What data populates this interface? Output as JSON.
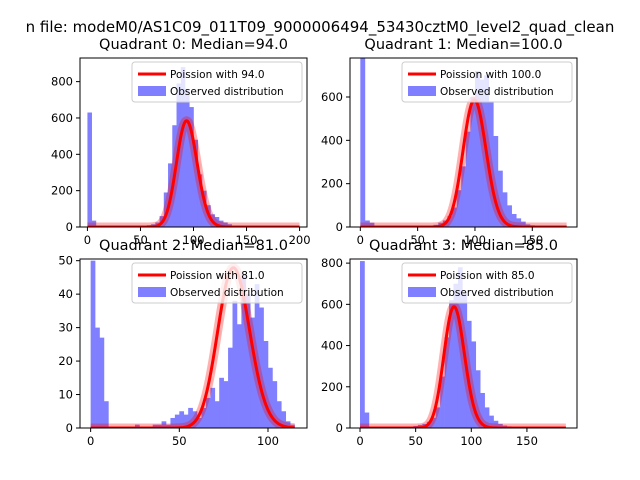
{
  "figure": {
    "suptitle": "n file: modeM0/AS1C09_011T09_9000006494_53430cztM0_level2_quad_clean",
    "colors": {
      "hist": "#7f7fff",
      "poisson": "#ff0000",
      "axes": "#000000",
      "legend_edge": "#cccccc"
    }
  },
  "chart_data": [
    {
      "type": "bar",
      "title": "Quadrant 0: Median=94.0",
      "xlim": [
        -7,
        207
      ],
      "ylim": [
        0,
        930
      ],
      "xticks": [
        0,
        50,
        100,
        150,
        200
      ],
      "xtick_labels": [
        "0",
        "50",
        "100",
        "150",
        "200"
      ],
      "yticks": [
        0,
        200,
        400,
        600,
        800
      ],
      "ytick_labels": [
        "0",
        "200",
        "400",
        "600",
        "800"
      ],
      "bin_edges": [
        0,
        4,
        8,
        12,
        16,
        20,
        24,
        28,
        32,
        36,
        40,
        44,
        48,
        52,
        56,
        60,
        64,
        68,
        72,
        76,
        80,
        84,
        88,
        92,
        96,
        100,
        104,
        108,
        112,
        116,
        120,
        124,
        128,
        132,
        136,
        140,
        144,
        148,
        152,
        156,
        160,
        164,
        168,
        172,
        176,
        180,
        184,
        188,
        192,
        196,
        200
      ],
      "counts": [
        630,
        35,
        0,
        0,
        0,
        0,
        0,
        0,
        0,
        0,
        0,
        0,
        0,
        5,
        10,
        15,
        25,
        60,
        190,
        350,
        560,
        790,
        880,
        760,
        660,
        480,
        290,
        200,
        120,
        70,
        55,
        35,
        25,
        15,
        8,
        5,
        4,
        3,
        2,
        1,
        1,
        0,
        0,
        0,
        0,
        0,
        0,
        0,
        0,
        0
      ],
      "poisson_mean": 94.0,
      "poisson_scale": 14200,
      "poisson_x": [
        0,
        200
      ],
      "legend": [
        "Poission with 94.0",
        "Observed distribution"
      ]
    },
    {
      "type": "bar",
      "title": "Quadrant 1: Median=100.0",
      "xlim": [
        -9,
        189
      ],
      "ylim": [
        0,
        780
      ],
      "xticks": [
        0,
        50,
        100,
        150
      ],
      "xtick_labels": [
        "0",
        "50",
        "100",
        "150"
      ],
      "yticks": [
        0,
        200,
        400,
        600
      ],
      "ytick_labels": [
        "0",
        "200",
        "400",
        "600"
      ],
      "bin_edges": [
        0,
        4,
        8,
        12,
        16,
        20,
        24,
        28,
        32,
        36,
        40,
        44,
        48,
        52,
        56,
        60,
        64,
        68,
        72,
        76,
        80,
        84,
        88,
        92,
        96,
        100,
        104,
        108,
        112,
        116,
        120,
        124,
        128,
        132,
        136,
        140,
        144,
        148,
        152,
        156,
        160,
        164,
        168,
        172,
        176,
        180
      ],
      "counts": [
        790,
        30,
        20,
        0,
        0,
        0,
        0,
        0,
        0,
        0,
        0,
        0,
        0,
        0,
        0,
        0,
        10,
        20,
        30,
        50,
        90,
        170,
        280,
        440,
        600,
        720,
        680,
        700,
        580,
        420,
        260,
        160,
        100,
        60,
        40,
        25,
        12,
        8,
        5,
        3,
        2,
        1,
        1,
        0,
        0
      ],
      "poisson_mean": 100.0,
      "poisson_scale": 14700,
      "poisson_x": [
        0,
        180
      ],
      "legend": [
        "Poission with 100.0",
        "Observed distribution"
      ]
    },
    {
      "type": "bar",
      "title": "Quadrant 2: Median=81.0",
      "xlim": [
        -6,
        122
      ],
      "ylim": [
        0,
        50.5
      ],
      "xticks": [
        0,
        50,
        100
      ],
      "xtick_labels": [
        "0",
        "50",
        "100"
      ],
      "yticks": [
        0,
        10,
        20,
        30,
        40,
        50
      ],
      "ytick_labels": [
        "0",
        "10",
        "20",
        "30",
        "40",
        "50"
      ],
      "bin_edges": [
        0,
        2.5,
        5,
        7.5,
        10,
        12.5,
        15,
        17.5,
        20,
        22.5,
        25,
        27.5,
        30,
        32.5,
        35,
        37.5,
        40,
        42.5,
        45,
        47.5,
        50,
        52.5,
        55,
        57.5,
        60,
        62.5,
        65,
        67.5,
        70,
        72.5,
        75,
        77.5,
        80,
        82.5,
        85,
        87.5,
        90,
        92.5,
        95,
        97.5,
        100,
        102.5,
        105,
        107.5,
        110,
        112.5,
        115
      ],
      "counts": [
        50,
        30,
        27,
        8,
        0,
        0,
        0,
        0,
        0,
        0,
        1,
        0,
        0,
        0,
        1,
        1,
        2,
        1,
        3,
        4,
        5,
        4,
        6,
        5,
        3,
        6,
        9,
        12,
        8,
        15,
        14,
        24,
        38,
        31,
        46,
        40,
        33,
        43,
        36,
        26,
        18,
        14,
        8,
        5,
        2,
        1
      ],
      "poisson_mean": 81.0,
      "poisson_scale": 1080,
      "poisson_x": [
        0,
        115
      ],
      "legend": [
        "Poission with 81.0",
        "Observed distribution"
      ]
    },
    {
      "type": "bar",
      "title": "Quadrant 3: Median=85.0",
      "xlim": [
        -9,
        195
      ],
      "ylim": [
        0,
        820
      ],
      "xticks": [
        0,
        50,
        100,
        150
      ],
      "xtick_labels": [
        "0",
        "50",
        "100",
        "150"
      ],
      "yticks": [
        0,
        200,
        400,
        600,
        800
      ],
      "ytick_labels": [
        "0",
        "200",
        "400",
        "600",
        "800"
      ],
      "bin_edges": [
        0,
        4,
        8,
        12,
        16,
        20,
        24,
        28,
        32,
        36,
        40,
        44,
        48,
        52,
        56,
        60,
        64,
        68,
        72,
        76,
        80,
        84,
        88,
        92,
        96,
        100,
        104,
        108,
        112,
        116,
        120,
        124,
        128,
        132,
        136,
        140,
        144,
        148,
        152,
        156,
        160,
        164,
        168,
        172,
        176,
        180,
        184
      ],
      "counts": [
        810,
        75,
        0,
        0,
        0,
        0,
        0,
        0,
        0,
        0,
        0,
        5,
        10,
        15,
        20,
        30,
        50,
        100,
        250,
        440,
        620,
        700,
        780,
        650,
        520,
        420,
        280,
        170,
        100,
        60,
        35,
        20,
        12,
        8,
        5,
        3,
        2,
        1,
        1,
        0,
        0,
        0,
        0,
        0,
        0,
        0
      ],
      "poisson_mean": 85.0,
      "poisson_scale": 13600,
      "poisson_x": [
        0,
        185
      ],
      "legend": [
        "Poission with 85.0",
        "Observed distribution"
      ]
    }
  ]
}
